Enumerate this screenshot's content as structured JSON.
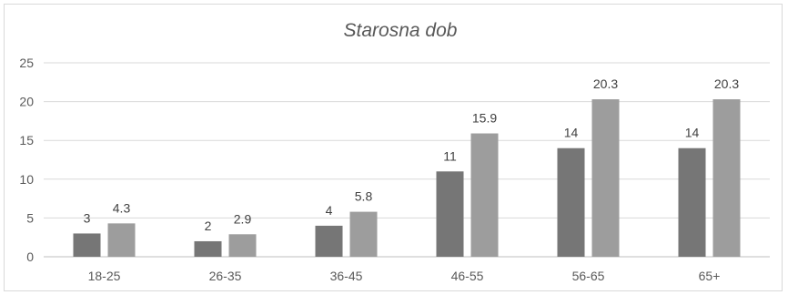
{
  "chart_data": {
    "type": "bar",
    "title": "Starosna dob",
    "xlabel": "",
    "ylabel": "",
    "categories": [
      "18-25",
      "26-35",
      "36-45",
      "46-55",
      "56-65",
      "65+"
    ],
    "series": [
      {
        "values": [
          3,
          2,
          4,
          11,
          14,
          14
        ],
        "labels": [
          "3",
          "2",
          "4",
          "11",
          "14",
          "14"
        ],
        "color": "#767676"
      },
      {
        "values": [
          4.3,
          2.9,
          5.8,
          15.9,
          20.3,
          20.3
        ],
        "labels": [
          "4.3",
          "2.9",
          "5.8",
          "15.9",
          "20.3",
          "20.3"
        ],
        "color": "#9d9d9d"
      }
    ],
    "ylim": [
      0,
      25
    ],
    "yticks": [
      "0",
      "5",
      "10",
      "15",
      "20",
      "25"
    ],
    "grid": true,
    "legend": "none"
  }
}
